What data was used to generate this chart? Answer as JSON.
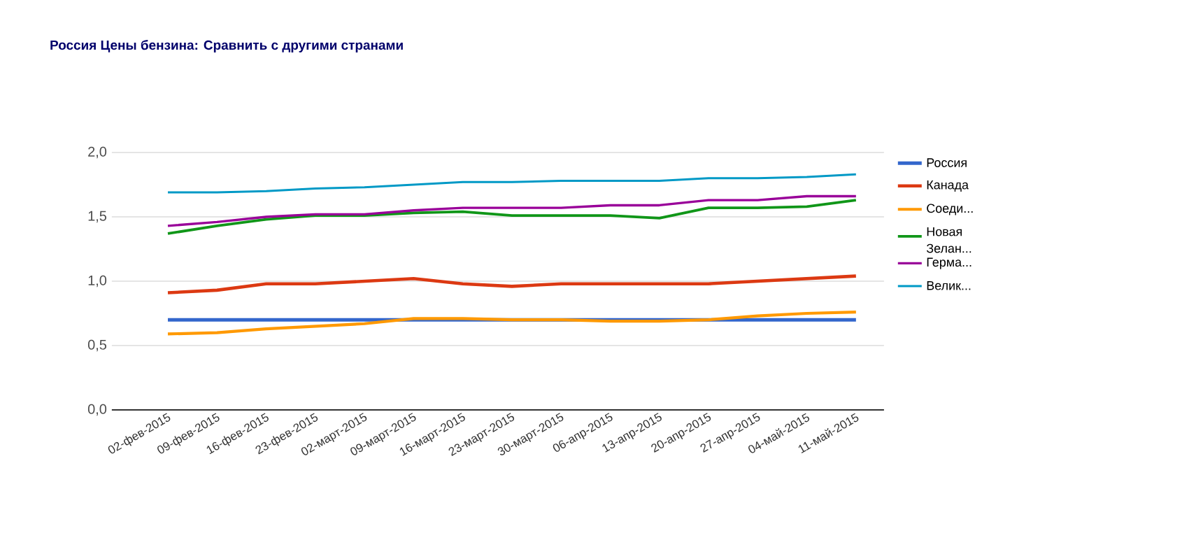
{
  "chart_data": {
    "type": "line",
    "title": "Россия Цены бензина: Сравнить с другими странами",
    "categories": [
      "02-фев-2015",
      "09-фев-2015",
      "16-фев-2015",
      "23-фев-2015",
      "02-март-2015",
      "09-март-2015",
      "16-март-2015",
      "23-март-2015",
      "30-март-2015",
      "06-апр-2015",
      "13-апр-2015",
      "20-апр-2015",
      "27-апр-2015",
      "04-май-2015",
      "11-май-2015"
    ],
    "series": [
      {
        "name": "Россия",
        "color": "#3366cc",
        "values": [
          0.7,
          0.7,
          0.7,
          0.7,
          0.7,
          0.7,
          0.7,
          0.7,
          0.7,
          0.7,
          0.7,
          0.7,
          0.7,
          0.7,
          0.7
        ]
      },
      {
        "name": "Канада",
        "color": "#dc3912",
        "values": [
          0.91,
          0.93,
          0.98,
          0.98,
          1.0,
          1.02,
          0.98,
          0.96,
          0.98,
          0.98,
          0.98,
          0.98,
          1.0,
          1.02,
          1.04
        ]
      },
      {
        "name": "Соеди...",
        "color": "#ff9900",
        "values": [
          0.59,
          0.6,
          0.63,
          0.65,
          0.67,
          0.71,
          0.71,
          0.7,
          0.7,
          0.69,
          0.69,
          0.7,
          0.73,
          0.75,
          0.76
        ]
      },
      {
        "name": "Новая Зелан...",
        "color": "#109618",
        "values": [
          1.37,
          1.43,
          1.48,
          1.51,
          1.51,
          1.53,
          1.54,
          1.51,
          1.51,
          1.51,
          1.49,
          1.57,
          1.57,
          1.58,
          1.63
        ]
      },
      {
        "name": "Герма...",
        "color": "#990099",
        "values": [
          1.43,
          1.46,
          1.5,
          1.52,
          1.52,
          1.55,
          1.57,
          1.57,
          1.57,
          1.59,
          1.59,
          1.63,
          1.63,
          1.66,
          1.66
        ]
      },
      {
        "name": "Велик...",
        "color": "#0099c6",
        "values": [
          1.69,
          1.69,
          1.7,
          1.72,
          1.73,
          1.75,
          1.77,
          1.77,
          1.78,
          1.78,
          1.78,
          1.8,
          1.8,
          1.81,
          1.83
        ]
      }
    ],
    "ylim": [
      0,
      2
    ],
    "yticks": [
      {
        "value": 0,
        "label": "0,0"
      },
      {
        "value": 0.5,
        "label": "0,5"
      },
      {
        "value": 1,
        "label": "1,0"
      },
      {
        "value": 1.5,
        "label": "1,5"
      },
      {
        "value": 2,
        "label": "2,0"
      }
    ],
    "grid": "y",
    "legend": "right"
  }
}
